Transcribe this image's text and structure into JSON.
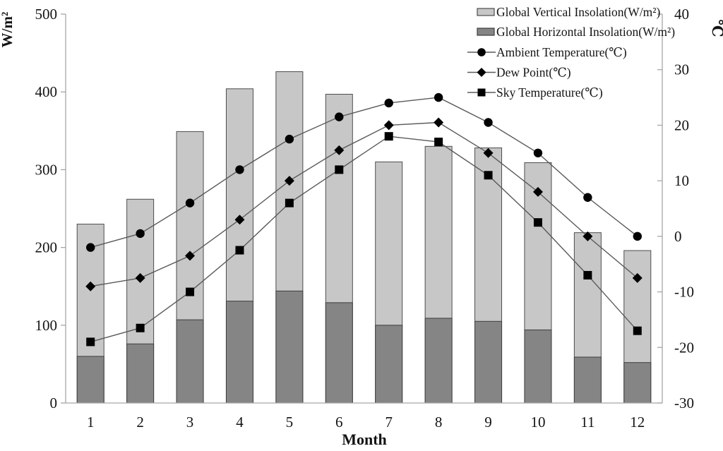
{
  "chart_data": {
    "type": "bar+line",
    "title": "",
    "xlabel": "Month",
    "categories": [
      "1",
      "2",
      "3",
      "4",
      "5",
      "6",
      "7",
      "8",
      "9",
      "10",
      "11",
      "12"
    ],
    "left_axis": {
      "label": "W/m²",
      "min": 0,
      "max": 500,
      "step": 100,
      "ticks": [
        0,
        100,
        200,
        300,
        400,
        500
      ]
    },
    "right_axis": {
      "label": "℃",
      "min": -30,
      "max": 40,
      "step": 10,
      "ticks": [
        -30,
        -20,
        -10,
        0,
        10,
        20,
        30,
        40
      ]
    },
    "grid": false,
    "bar_style": "overlapped",
    "legend_position": "top-right",
    "bar_series": [
      {
        "name": "Global Vertical Insolation(W/m²)",
        "axis": "left",
        "color": "#c7c7c7",
        "border_color": "#4d4d4d",
        "values": [
          230,
          262,
          349,
          404,
          426,
          397,
          310,
          330,
          328,
          309,
          219,
          196
        ]
      },
      {
        "name": "Global Horizontal Insolation(W/m²)",
        "axis": "left",
        "color": "#858585",
        "border_color": "#3d3d3d",
        "values": [
          60,
          76,
          107,
          131,
          144,
          129,
          100,
          109,
          105,
          94,
          59,
          52
        ]
      }
    ],
    "line_series": [
      {
        "name": "Ambient Temperature(℃)",
        "axis": "right",
        "marker": "circle",
        "line_color": "#5a5a5a",
        "marker_color": "#000000",
        "values": [
          -2,
          0.5,
          6,
          12,
          17.5,
          21.5,
          24,
          25,
          20.5,
          15,
          7,
          0
        ]
      },
      {
        "name": "Dew Point(℃)",
        "axis": "right",
        "marker": "diamond",
        "line_color": "#5a5a5a",
        "marker_color": "#000000",
        "values": [
          -9,
          -7.5,
          -3.5,
          3,
          10,
          15.5,
          20,
          20.5,
          15,
          8,
          0,
          -7.5
        ]
      },
      {
        "name": "Sky Temperature(℃)",
        "axis": "right",
        "marker": "square",
        "line_color": "#5a5a5a",
        "marker_color": "#000000",
        "values": [
          -19,
          -16.5,
          -10,
          -2.5,
          6,
          12,
          18,
          17,
          11,
          2.5,
          -7,
          -17
        ]
      }
    ]
  }
}
